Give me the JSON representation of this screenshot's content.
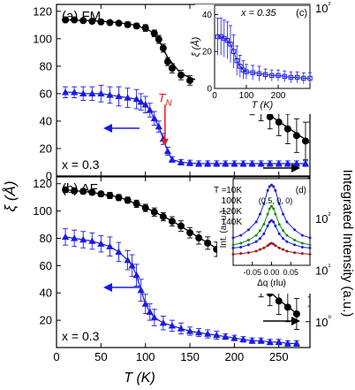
{
  "figure": {
    "left_axis_label": "ξ (Å)",
    "right_axis_label": "Integrated Intensity (a.u.)",
    "x_axis_label": "T (K)"
  },
  "chart_data": [
    {
      "id": "panel-a",
      "type": "line",
      "panel_label": "(a) FM",
      "composition_label": "x = 0.3",
      "transition_label": "T",
      "transition_subscript": "N",
      "transition_T": 122,
      "xlim": [
        0,
        285
      ],
      "ylim_left": [
        0,
        125
      ],
      "yticks_left": [
        0,
        20,
        40,
        60,
        80,
        100,
        120
      ],
      "ylim_right_log": [
        -0.5,
        2.05
      ],
      "right_tick_labels": [
        "10²"
      ],
      "right_tick_log_values": [
        2
      ],
      "series": [
        {
          "axis": "left",
          "color": "#1a1ae6",
          "marker": "triangle",
          "x": [
            10,
            20,
            30,
            40,
            50,
            60,
            70,
            80,
            90,
            95,
            100,
            105,
            110,
            115,
            120,
            125,
            130,
            140,
            150,
            160,
            170,
            180,
            190,
            200,
            210,
            220,
            230,
            240,
            250,
            260,
            270,
            280
          ],
          "y": [
            61,
            61,
            60,
            60,
            60,
            59,
            58,
            57,
            56,
            54,
            52,
            48,
            42,
            36,
            27,
            18,
            12,
            10,
            9.5,
            9,
            9,
            9,
            9,
            9,
            9,
            9,
            9,
            9,
            9,
            9,
            9,
            9
          ],
          "err": [
            4,
            4,
            5,
            5,
            6,
            6,
            7,
            7,
            7,
            6,
            6,
            5,
            5,
            4,
            4,
            3,
            2,
            2,
            2,
            2,
            2,
            2,
            2,
            2,
            2,
            2,
            2,
            2,
            2,
            2,
            2,
            2
          ]
        },
        {
          "axis": "right",
          "color": "#000000",
          "marker": "circle",
          "x": [
            10,
            20,
            30,
            40,
            50,
            60,
            70,
            80,
            90,
            100,
            110,
            115,
            120,
            125,
            130,
            140,
            150,
            160,
            170,
            180,
            190,
            200,
            210,
            220,
            230,
            240,
            250,
            260,
            270,
            280
          ],
          "y": [
            1.82,
            1.82,
            1.81,
            1.8,
            1.79,
            1.78,
            1.77,
            1.75,
            1.73,
            1.7,
            1.62,
            1.53,
            1.4,
            1.2,
            1.1,
            1.0,
            0.92,
            0.9,
            0.86,
            0.82,
            0.8,
            0.72,
            0.64,
            0.55,
            0.47,
            0.38,
            0.3,
            0.2,
            0.1,
            0.02
          ],
          "err": [
            0.03,
            0.03,
            0.03,
            0.03,
            0.03,
            0.03,
            0.03,
            0.04,
            0.04,
            0.05,
            0.05,
            0.06,
            0.06,
            0.06,
            0.07,
            0.07,
            0.07,
            0.07,
            0.08,
            0.08,
            0.09,
            0.1,
            0.12,
            0.14,
            0.15,
            0.18,
            0.2,
            0.22,
            0.25,
            0.28
          ],
          "fit_x": [
            10,
            40,
            70,
            90,
            105,
            115,
            125,
            140,
            160,
            180,
            200,
            220,
            240,
            260,
            280
          ],
          "fit_y": [
            1.82,
            1.81,
            1.78,
            1.74,
            1.66,
            1.52,
            1.26,
            1.02,
            0.91,
            0.83,
            0.72,
            0.57,
            0.4,
            0.22,
            0.04
          ]
        }
      ]
    },
    {
      "id": "panel-b",
      "type": "line",
      "panel_label": "(b) AF",
      "composition_label": "x = 0.3",
      "xlim": [
        0,
        285
      ],
      "xticks": [
        0,
        50,
        100,
        150,
        200,
        250
      ],
      "ylim_left": [
        0,
        125
      ],
      "yticks_left": [
        0,
        20,
        40,
        60,
        80,
        100,
        120
      ],
      "ylim_right_log": [
        -0.5,
        2.8
      ],
      "right_tick_labels": [
        "10⁰",
        "10¹",
        "10²"
      ],
      "right_tick_log_values": [
        0,
        1,
        2
      ],
      "series": [
        {
          "axis": "left",
          "color": "#1a1ae6",
          "marker": "triangle",
          "x": [
            10,
            20,
            30,
            40,
            50,
            60,
            70,
            80,
            85,
            90,
            95,
            100,
            105,
            110,
            120,
            130,
            140,
            150,
            160,
            170,
            180,
            190,
            200,
            210,
            220,
            230,
            240,
            250,
            260,
            270
          ],
          "y": [
            81,
            80,
            79,
            78,
            76,
            74,
            70,
            64,
            60,
            53,
            42,
            32,
            26,
            22,
            18,
            16,
            14,
            12,
            11,
            10,
            9,
            8,
            7,
            6,
            5,
            5,
            4,
            4,
            3,
            3
          ],
          "err": [
            6,
            6,
            6,
            6,
            6,
            7,
            7,
            7,
            8,
            8,
            8,
            7,
            6,
            6,
            5,
            4,
            4,
            3,
            3,
            3,
            3,
            2,
            2,
            2,
            2,
            2,
            2,
            2,
            2,
            2
          ]
        },
        {
          "axis": "right",
          "color": "#000000",
          "marker": "circle",
          "x": [
            10,
            20,
            30,
            40,
            50,
            60,
            70,
            80,
            90,
            100,
            110,
            120,
            130,
            140,
            150,
            160,
            170,
            180,
            190,
            200,
            210,
            220,
            230,
            240,
            250,
            260,
            270
          ],
          "y": [
            2.55,
            2.53,
            2.52,
            2.5,
            2.47,
            2.44,
            2.4,
            2.35,
            2.28,
            2.2,
            2.12,
            2.03,
            1.94,
            1.85,
            1.72,
            1.62,
            1.52,
            1.4,
            1.3,
            1.18,
            1.05,
            0.88,
            0.7,
            0.55,
            0.4,
            0.28,
            0.15
          ],
          "err": [
            0.05,
            0.05,
            0.05,
            0.05,
            0.05,
            0.06,
            0.06,
            0.06,
            0.07,
            0.07,
            0.08,
            0.08,
            0.09,
            0.1,
            0.1,
            0.12,
            0.12,
            0.14,
            0.15,
            0.16,
            0.18,
            0.2,
            0.22,
            0.24,
            0.26,
            0.28,
            0.3
          ],
          "fit_x": [
            10,
            40,
            70,
            100,
            130,
            160,
            190,
            220,
            250,
            270
          ],
          "fit_y": [
            2.55,
            2.5,
            2.41,
            2.21,
            1.95,
            1.63,
            1.31,
            0.89,
            0.42,
            0.16
          ]
        }
      ]
    },
    {
      "id": "inset-c",
      "type": "line",
      "panel_label": "(c)",
      "composition_label": "x = 0.35",
      "xlabel": "T (K)",
      "ylabel": "ξ (Å)",
      "xlim": [
        0,
        300
      ],
      "xticks": [
        0,
        100,
        200
      ],
      "ylim": [
        0,
        45
      ],
      "yticks": [
        0,
        20,
        40
      ],
      "series": [
        {
          "color": "#1a1ae6",
          "marker": "square-open",
          "x": [
            10,
            20,
            30,
            40,
            50,
            60,
            70,
            80,
            90,
            100,
            120,
            140,
            160,
            180,
            200,
            220,
            240,
            260,
            280,
            300
          ],
          "y": [
            28,
            28,
            27,
            26,
            24,
            20,
            15,
            12,
            10,
            9,
            8.5,
            8,
            7.5,
            7,
            7,
            6.5,
            6,
            6,
            5.5,
            5.5
          ],
          "err": [
            10,
            10,
            10,
            10,
            10,
            9,
            8,
            6,
            5,
            4,
            4,
            4,
            3,
            3,
            3,
            3,
            3,
            3,
            3,
            3
          ]
        }
      ]
    },
    {
      "id": "inset-d",
      "type": "line",
      "panel_label": "(d)",
      "reflection_label": "(0.5, 0, 0)",
      "xlabel": "Δq (rlu)",
      "ylabel": "Int. (a. u.)",
      "xlim": [
        -0.1,
        0.1
      ],
      "xticks": [
        -0.05,
        0.0,
        0.05
      ],
      "xtick_labels": [
        "-0.05",
        "0.00",
        "0.05"
      ],
      "legend_title": "T =",
      "series": [
        {
          "name": "10K",
          "color": "#1a1ae6",
          "x": [
            -0.1,
            -0.08,
            -0.06,
            -0.04,
            -0.03,
            -0.02,
            -0.01,
            -0.005,
            0.0,
            0.005,
            0.01,
            0.02,
            0.03,
            0.04,
            0.06,
            0.08,
            0.1
          ],
          "y": [
            0.35,
            0.38,
            0.45,
            0.55,
            0.65,
            0.78,
            0.95,
            1.0,
            1.02,
            1.0,
            0.95,
            0.78,
            0.65,
            0.55,
            0.45,
            0.38,
            0.35
          ]
        },
        {
          "name": "100K",
          "color": "#1a8a1a",
          "x": [
            -0.1,
            -0.08,
            -0.06,
            -0.04,
            -0.03,
            -0.02,
            -0.01,
            -0.005,
            0.0,
            0.005,
            0.01,
            0.02,
            0.03,
            0.04,
            0.06,
            0.08,
            0.1
          ],
          "y": [
            0.26,
            0.28,
            0.32,
            0.38,
            0.44,
            0.52,
            0.65,
            0.72,
            0.75,
            0.72,
            0.65,
            0.52,
            0.44,
            0.38,
            0.32,
            0.28,
            0.26
          ]
        },
        {
          "name": "120K",
          "color": "#1a1ae6",
          "x": [
            -0.1,
            -0.08,
            -0.06,
            -0.04,
            -0.03,
            -0.02,
            -0.01,
            -0.005,
            0.0,
            0.005,
            0.01,
            0.02,
            0.03,
            0.04,
            0.06,
            0.08,
            0.1
          ],
          "y": [
            0.22,
            0.23,
            0.26,
            0.3,
            0.34,
            0.4,
            0.5,
            0.55,
            0.57,
            0.55,
            0.5,
            0.4,
            0.34,
            0.3,
            0.26,
            0.23,
            0.22
          ]
        },
        {
          "name": "140K",
          "color": "#9a1a1a",
          "x": [
            -0.1,
            -0.08,
            -0.06,
            -0.04,
            -0.03,
            -0.02,
            -0.01,
            -0.005,
            0.0,
            0.005,
            0.01,
            0.02,
            0.03,
            0.04,
            0.06,
            0.08,
            0.1
          ],
          "y": [
            0.14,
            0.15,
            0.16,
            0.18,
            0.2,
            0.22,
            0.25,
            0.27,
            0.28,
            0.27,
            0.25,
            0.22,
            0.2,
            0.18,
            0.16,
            0.15,
            0.14
          ]
        }
      ]
    }
  ]
}
